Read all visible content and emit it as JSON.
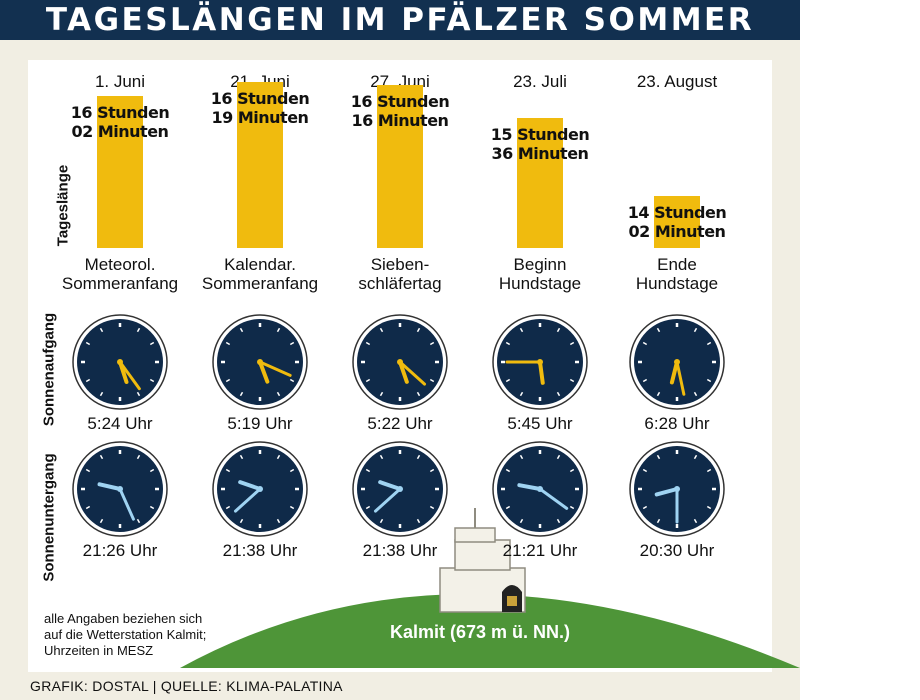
{
  "title": "TAGESLÄNGEN IM PFÄLZER SOMMER",
  "row_labels": {
    "day_length": "Tageslänge",
    "sunrise": "Sonnenaufgang",
    "sunset": "Sonnenuntergang"
  },
  "chart_data": {
    "type": "bar",
    "categories": [
      "1. Juni",
      "21. Juni",
      "27. Juni",
      "23. Juli",
      "23. August"
    ],
    "day_length_hours": [
      16.033,
      16.317,
      16.267,
      15.6,
      14.033
    ],
    "day_length_labels": [
      {
        "line1": "16 Stunden",
        "line2": "02 Minuten"
      },
      {
        "line1": "16 Stunden",
        "line2": "19 Minuten"
      },
      {
        "line1": "16 Stunden",
        "line2": "16 Minuten"
      },
      {
        "line1": "15 Stunden",
        "line2": "36 Minuten"
      },
      {
        "line1": "14 Stunden",
        "line2": "02 Minuten"
      }
    ],
    "events": [
      {
        "line1": "Meteorol.",
        "line2": "Sommeranfang"
      },
      {
        "line1": "Kalendar.",
        "line2": "Sommeranfang"
      },
      {
        "line1": "Sieben-",
        "line2": "schläfertag"
      },
      {
        "line1": "Beginn",
        "line2": "Hundstage"
      },
      {
        "line1": "Ende",
        "line2": "Hundstage"
      }
    ],
    "sunrise": [
      {
        "label": "5:24 Uhr",
        "h": 5,
        "m": 24
      },
      {
        "label": "5:19 Uhr",
        "h": 5,
        "m": 19
      },
      {
        "label": "5:22 Uhr",
        "h": 5,
        "m": 22
      },
      {
        "label": "5:45 Uhr",
        "h": 5,
        "m": 45
      },
      {
        "label": "6:28 Uhr",
        "h": 6,
        "m": 28
      }
    ],
    "sunset": [
      {
        "label": "21:26 Uhr",
        "h": 21,
        "m": 26
      },
      {
        "label": "21:38 Uhr",
        "h": 21,
        "m": 38
      },
      {
        "label": "21:38 Uhr",
        "h": 21,
        "m": 38
      },
      {
        "label": "21:21 Uhr",
        "h": 21,
        "m": 21
      },
      {
        "label": "20:30 Uhr",
        "h": 20,
        "m": 30
      }
    ]
  },
  "colors": {
    "bar": "#f0bb0e",
    "clock_face": "#0f2a49",
    "sunrise_hands": "#f0bb0e",
    "sunset_hands": "#9fd3f2",
    "hill": "#4e9538",
    "title_bg": "#123050"
  },
  "mountain_label": "Kalmit (673 m ü. NN.)",
  "note_lines": [
    "alle Angaben beziehen sich",
    "auf die Wetterstation Kalmit;",
    "Uhrzeiten in MESZ"
  ],
  "source": "GRAFIK: DOSTAL | QUELLE: KLIMA-PALATINA"
}
